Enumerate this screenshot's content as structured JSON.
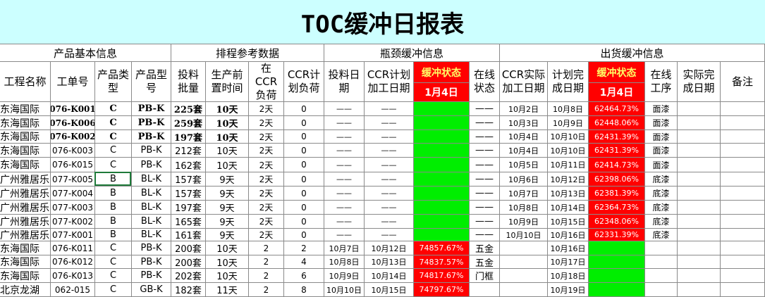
{
  "title": "TOC缓冲日报表",
  "groups": [
    "产品基本信息",
    "排程参考数据",
    "瓶颈缓冲信息",
    "出货缓冲信息"
  ],
  "columns": [
    "工程名称",
    "工单号",
    "产品类型",
    "产品型号",
    "投料批量",
    "生产前置时间",
    "在CCR负荷",
    "CCR计划负荷",
    "投料日期",
    "CCR计划加工日期",
    "缓冲状态",
    "在线状态",
    "CCR实际加工日期",
    "计划完成日期",
    "缓冲状态",
    "在线工序",
    "实际完成日期",
    "备注"
  ],
  "status_date": "1月4日",
  "rows": [
    [
      "东海国际",
      "076-K001",
      "C",
      "PB-K",
      "225套",
      "10天",
      "2天",
      "0",
      "——",
      "——",
      null,
      "——",
      "10月2日",
      "10月8日",
      "62464.73%",
      "面漆",
      null,
      null
    ],
    [
      "东海国际",
      "076-K006",
      "C",
      "PB-K",
      "259套",
      "10天",
      "2天",
      "0",
      "——",
      "——",
      null,
      "——",
      "10月3日",
      "10月9日",
      "62448.06%",
      "面漆",
      null,
      null
    ],
    [
      "东海国际",
      "076-K002",
      "C",
      "PB-K",
      "197套",
      "10天",
      "2天",
      "0",
      "——",
      "——",
      null,
      "——",
      "10月4日",
      "10月10日",
      "62431.39%",
      "面漆",
      null,
      null
    ],
    [
      "东海国际",
      "076-K003",
      "C",
      "PB-K",
      "212套",
      "10天",
      "2天",
      "0",
      "——",
      "——",
      null,
      "——",
      "10月4日",
      "10月10日",
      "62431.39%",
      "面漆",
      null,
      null
    ],
    [
      "东海国际",
      "076-K015",
      "C",
      "PB-K",
      "162套",
      "10天",
      "2天",
      "0",
      "——",
      "——",
      null,
      "——",
      "10月5日",
      "10月11日",
      "62414.73%",
      "面漆",
      null,
      null
    ],
    [
      "广州雅居乐",
      "077-K005",
      "B",
      "BL-K",
      "157套",
      "9天",
      "2天",
      "0",
      "——",
      "——",
      null,
      "——",
      "10月6日",
      "10月12日",
      "62398.06%",
      "底漆",
      null,
      null
    ],
    [
      "广州雅居乐",
      "077-K004",
      "B",
      "BL-K",
      "157套",
      "9天",
      "2天",
      "0",
      "——",
      "——",
      null,
      "——",
      "10月7日",
      "10月13日",
      "62381.39%",
      "底漆",
      null,
      null
    ],
    [
      "广州雅居乐",
      "077-K003",
      "B",
      "BL-K",
      "197套",
      "9天",
      "2天",
      "0",
      "——",
      "——",
      null,
      "——",
      "10月8日",
      "10月14日",
      "62364.73%",
      "底漆",
      null,
      null
    ],
    [
      "广州雅居乐",
      "077-K002",
      "B",
      "BL-K",
      "165套",
      "9天",
      "2天",
      "0",
      "——",
      "——",
      null,
      "——",
      "10月9日",
      "10月15日",
      "62348.06%",
      "底漆",
      null,
      null
    ],
    [
      "广州雅居乐",
      "077-K001",
      "B",
      "BL-K",
      "161套",
      "9天",
      "2天",
      "0",
      "——",
      "——",
      null,
      "——",
      "10月10日",
      "10月16日",
      "62331.39%",
      "底漆",
      null,
      null
    ],
    [
      "东海国际",
      "076-K011",
      "C",
      "PB-K",
      "200套",
      "10天",
      "2",
      "2",
      "10月7日",
      "10月12日",
      "74857.67%",
      "五金",
      null,
      "10月16日",
      null,
      null,
      null,
      null
    ],
    [
      "东海国际",
      "076-K012",
      "C",
      "PB-K",
      "200套",
      "10天",
      "2",
      "4",
      "10月8日",
      "10月13日",
      "74837.57%",
      "五金",
      null,
      "10月17日",
      null,
      null,
      null,
      null
    ],
    [
      "东海国际",
      "076-K013",
      "C",
      "PB-K",
      "202套",
      "10天",
      "2",
      "6",
      "10月9日",
      "10月14日",
      "74817.67%",
      "门框",
      null,
      "10月18日",
      null,
      null,
      null,
      null
    ],
    [
      "北京龙湖",
      "062-015",
      "C",
      "GB-K",
      "182套",
      "11天",
      "2",
      "8",
      "10月10日",
      "10月15日",
      "74797.67%",
      null,
      null,
      "10月19日",
      null,
      null,
      null,
      null
    ]
  ]
}
